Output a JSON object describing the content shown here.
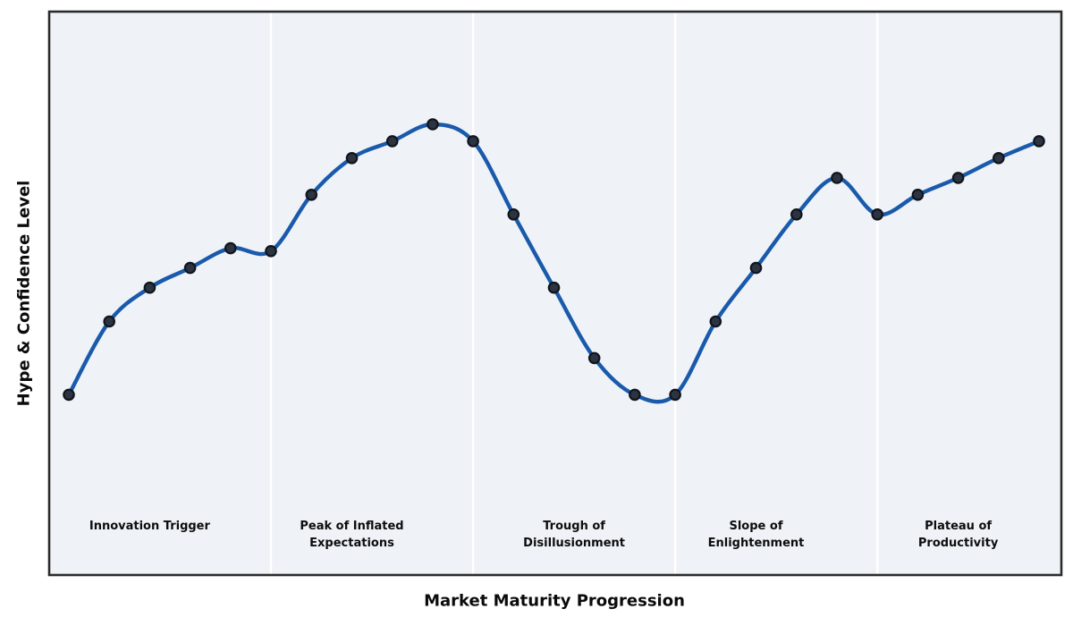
{
  "figure": {
    "x_axis_label": "Market Maturity Progression",
    "y_axis_label": "Hype & Confidence Level"
  },
  "chart_data": {
    "type": "line",
    "title": "",
    "xlabel": "Market Maturity Progression",
    "ylabel": "Hype & Confidence Level",
    "x": [
      0,
      1,
      2,
      3,
      4,
      5,
      6,
      7,
      8,
      9,
      10,
      11,
      12,
      13,
      14,
      15,
      16,
      17,
      18,
      19,
      20,
      21,
      22,
      23,
      24
    ],
    "values": [
      32,
      45,
      51,
      54.5,
      58,
      57.5,
      67.5,
      74,
      77,
      80,
      77,
      64,
      51,
      38.5,
      32,
      32,
      45,
      54.5,
      64,
      70.5,
      64,
      67.5,
      70.5,
      74,
      77
    ],
    "ylim": [
      0,
      100
    ],
    "xlim": [
      -0.5,
      24.55
    ],
    "grid": false,
    "legend": "none",
    "smooth": true,
    "markers": true,
    "phases": [
      {
        "label": "Innovation Trigger",
        "center_x": 2
      },
      {
        "label": "Peak of Inflated\nExpectations",
        "center_x": 7
      },
      {
        "label": "Trough of\nDisillusionment",
        "center_x": 12.5
      },
      {
        "label": "Slope of\nEnlightenment",
        "center_x": 17
      },
      {
        "label": "Plateau of\nProductivity",
        "center_x": 22
      }
    ],
    "phase_boundaries_x": [
      5,
      10,
      15,
      20
    ],
    "colors": {
      "line": "#1a5aab",
      "marker_fill": "#2c3442",
      "marker_edge": "#10151c",
      "plot_background": "#eff3f8",
      "phase_divider": "#ffffff",
      "plot_border": "#2b2b2b",
      "text": "#0b0b0b",
      "page_background": "#ffffff"
    }
  }
}
